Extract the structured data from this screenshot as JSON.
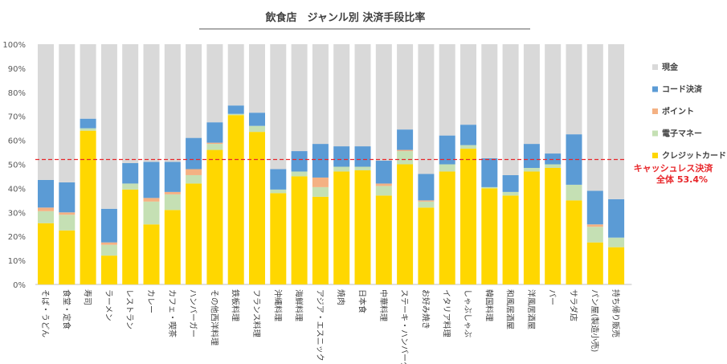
{
  "chart_data": {
    "type": "bar",
    "stacked": true,
    "title": "飲食店　ジャンル別 決済手段比率",
    "xlabel": "",
    "ylabel": "",
    "ylim": [
      0,
      100
    ],
    "yticks": [
      "0%",
      "10%",
      "20%",
      "30%",
      "40%",
      "50%",
      "60%",
      "70%",
      "80%",
      "90%",
      "100%"
    ],
    "grid": false,
    "legend_position": "right",
    "categories": [
      "そば・うどん",
      "食堂・定食",
      "寿司",
      "ラーメン",
      "レストラン",
      "カレー",
      "カフェ・喫茶",
      "ハンバーガー",
      "その他西洋料理",
      "鉄板料理",
      "フランス料理",
      "沖縄料理",
      "海鮮料理",
      "アジア・エスニック",
      "焼肉",
      "日本食",
      "中華料理",
      "ステーキ・ハンバーグ",
      "お好み焼き",
      "イタリア料理",
      "しゃぶしゃぶ",
      "韓国料理",
      "和風居酒屋",
      "洋風居酒屋",
      "バー",
      "サラダ店",
      "パン屋(製造小売)",
      "持ち帰り販売"
    ],
    "series": [
      {
        "name": "クレジットカード",
        "color": "#ffd700",
        "values": [
          25.5,
          22.5,
          64,
          12,
          39.5,
          25,
          31,
          42,
          56,
          70.5,
          63.5,
          38,
          45,
          36.5,
          47,
          47.5,
          37,
          50,
          32,
          47,
          56.5,
          40,
          37,
          47,
          48.5,
          35,
          17.5,
          15.5
        ]
      },
      {
        "name": "電子マネー",
        "color": "#c5e0b4",
        "values": [
          5,
          6.5,
          1,
          4.5,
          2.5,
          9.5,
          6.5,
          3.5,
          2.5,
          0.5,
          2.5,
          1.5,
          2,
          4,
          2,
          1.5,
          4,
          5.5,
          2.5,
          3,
          1.5,
          0.5,
          1.5,
          1.5,
          1.5,
          6.5,
          6.5,
          4
        ]
      },
      {
        "name": "ポイント",
        "color": "#f4b183",
        "values": [
          1.5,
          1,
          0,
          1,
          0,
          1.5,
          1,
          2.5,
          0.5,
          0,
          0,
          0,
          0,
          4,
          0,
          0,
          1,
          0.5,
          0.5,
          0,
          0,
          0,
          0,
          0,
          0,
          0,
          1,
          0
        ]
      },
      {
        "name": "コード決済",
        "color": "#5b9bd5",
        "values": [
          11.5,
          12.5,
          4,
          14,
          8.5,
          15,
          12.5,
          13,
          8.5,
          3.5,
          5.5,
          8.5,
          8.5,
          14,
          8.5,
          8.5,
          9.5,
          8.5,
          11,
          12,
          8.5,
          12,
          7,
          10,
          4.5,
          21,
          14,
          16
        ]
      },
      {
        "name": "現金",
        "color": "#d9d9d9",
        "values": [
          56.5,
          57.5,
          31,
          68.5,
          49.5,
          49,
          49,
          39,
          32.5,
          25.5,
          28.5,
          52,
          44.5,
          41.5,
          42.5,
          42.5,
          48.5,
          35.5,
          54,
          38,
          33.5,
          47.5,
          54.5,
          41.5,
          45.5,
          37.5,
          61,
          64.5
        ]
      }
    ],
    "legend_order": [
      "現金",
      "コード決済",
      "ポイント",
      "電子マネー",
      "クレジットカード"
    ],
    "reference_line": {
      "value": 52,
      "color": "#e8262a",
      "style": "dashed"
    },
    "annotation": [
      "キャッシュレス決済",
      "全体 53.4%"
    ]
  }
}
